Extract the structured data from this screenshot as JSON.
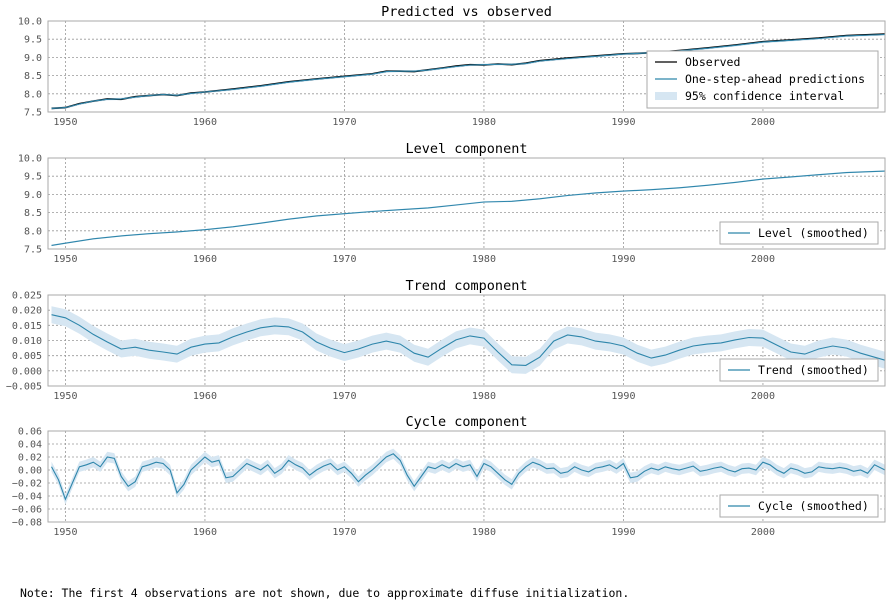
{
  "footnote": "Note: The first 4 observations are not shown, due to approximate diffuse initialization.",
  "chart_data": [
    {
      "type": "line",
      "title": "Predicted vs observed",
      "xlim": [
        1948.75,
        2008.75
      ],
      "ylim": [
        7.5,
        10.0
      ],
      "yticks": [
        "7.5",
        "8.0",
        "8.5",
        "9.0",
        "9.5",
        "10.0"
      ],
      "xticks": [
        "1950",
        "1960",
        "1970",
        "1980",
        "1990",
        "2000"
      ],
      "grid": true,
      "legend": "right",
      "legend_entries": [
        "Observed",
        "One-step-ahead predictions",
        "95% confidence interval"
      ],
      "colors": {
        "observed": "#000000",
        "predicted": "#2e86ab",
        "band": "#d6e6f2"
      },
      "series": [
        {
          "name": "Observed",
          "x": [
            1949,
            1950,
            1951,
            1952,
            1953,
            1954,
            1955,
            1956,
            1957,
            1958,
            1959,
            1960,
            1962,
            1964,
            1966,
            1968,
            1970,
            1972,
            1973,
            1974,
            1975,
            1976,
            1977,
            1978,
            1979,
            1980,
            1981,
            1982,
            1983,
            1984,
            1986,
            1988,
            1990,
            1991,
            1992,
            1994,
            1996,
            1998,
            2000,
            2002,
            2004,
            2006,
            2008.75
          ],
          "values": [
            7.6,
            7.62,
            7.73,
            7.8,
            7.86,
            7.85,
            7.92,
            7.95,
            7.98,
            7.95,
            8.02,
            8.05,
            8.13,
            8.22,
            8.33,
            8.41,
            8.48,
            8.55,
            8.62,
            8.62,
            8.61,
            8.66,
            8.71,
            8.76,
            8.8,
            8.79,
            8.82,
            8.8,
            8.84,
            8.91,
            8.98,
            9.04,
            9.1,
            9.11,
            9.13,
            9.19,
            9.26,
            9.34,
            9.43,
            9.48,
            9.53,
            9.6,
            9.64
          ]
        },
        {
          "name": "One-step-ahead predictions",
          "x": [
            1949,
            1950,
            1951,
            1952,
            1953,
            1954,
            1955,
            1956,
            1957,
            1958,
            1959,
            1960,
            1962,
            1964,
            1966,
            1968,
            1970,
            1972,
            1973,
            1974,
            1975,
            1976,
            1977,
            1978,
            1979,
            1980,
            1981,
            1982,
            1983,
            1984,
            1986,
            1988,
            1990,
            1991,
            1992,
            1994,
            1996,
            1998,
            2000,
            2002,
            2004,
            2006,
            2008.75
          ],
          "values": [
            7.6,
            7.62,
            7.72,
            7.8,
            7.85,
            7.86,
            7.91,
            7.95,
            7.98,
            7.96,
            8.01,
            8.05,
            8.12,
            8.21,
            8.32,
            8.4,
            8.47,
            8.54,
            8.61,
            8.62,
            8.62,
            8.65,
            8.7,
            8.75,
            8.79,
            8.8,
            8.81,
            8.81,
            8.83,
            8.9,
            8.97,
            9.03,
            9.09,
            9.11,
            9.13,
            9.18,
            9.25,
            9.33,
            9.42,
            9.47,
            9.52,
            9.59,
            9.63
          ]
        }
      ],
      "band_halfwidth": 0.03
    },
    {
      "type": "line",
      "title": "Level component",
      "xlim": [
        1948.75,
        2008.75
      ],
      "ylim": [
        7.5,
        10.0
      ],
      "yticks": [
        "7.5",
        "8.0",
        "8.5",
        "9.0",
        "9.5",
        "10.0"
      ],
      "xticks": [
        "1950",
        "1960",
        "1970",
        "1980",
        "1990",
        "2000"
      ],
      "grid": true,
      "legend": "lower right",
      "legend_entries": [
        "Level (smoothed)"
      ],
      "colors": {
        "line": "#2e86ab",
        "band": "#d6e6f2"
      },
      "series": [
        {
          "name": "Level (smoothed)",
          "x": [
            1949,
            1950,
            1952,
            1954,
            1956,
            1958,
            1960,
            1962,
            1964,
            1966,
            1968,
            1970,
            1972,
            1974,
            1976,
            1978,
            1980,
            1982,
            1984,
            1986,
            1988,
            1990,
            1992,
            1994,
            1996,
            1998,
            2000,
            2002,
            2004,
            2006,
            2008.75
          ],
          "values": [
            7.6,
            7.66,
            7.78,
            7.86,
            7.92,
            7.97,
            8.03,
            8.11,
            8.21,
            8.32,
            8.41,
            8.47,
            8.53,
            8.58,
            8.63,
            8.71,
            8.79,
            8.81,
            8.88,
            8.97,
            9.04,
            9.09,
            9.13,
            9.18,
            9.25,
            9.33,
            9.42,
            9.48,
            9.54,
            9.6,
            9.64
          ]
        }
      ],
      "band_halfwidth": 0.02
    },
    {
      "type": "line",
      "title": "Trend component",
      "xlim": [
        1948.75,
        2008.75
      ],
      "ylim": [
        -0.005,
        0.025
      ],
      "yticks": [
        "−0.005",
        "0.000",
        "0.005",
        "0.010",
        "0.015",
        "0.020",
        "0.025"
      ],
      "xticks": [
        "1950",
        "1960",
        "1970",
        "1980",
        "1990",
        "2000"
      ],
      "grid": true,
      "legend": "lower right",
      "legend_entries": [
        "Trend (smoothed)"
      ],
      "colors": {
        "line": "#2e86ab",
        "band": "#d6e6f2"
      },
      "series": [
        {
          "name": "Trend (smoothed)",
          "x": [
            1949,
            1950,
            1951,
            1952,
            1953,
            1954,
            1955,
            1956,
            1957,
            1958,
            1959,
            1960,
            1961,
            1962,
            1963,
            1964,
            1965,
            1966,
            1967,
            1968,
            1969,
            1970,
            1971,
            1972,
            1973,
            1974,
            1975,
            1976,
            1977,
            1978,
            1979,
            1980,
            1981,
            1982,
            1983,
            1984,
            1985,
            1986,
            1987,
            1988,
            1989,
            1990,
            1991,
            1992,
            1993,
            1994,
            1995,
            1996,
            1997,
            1998,
            1999,
            2000,
            2001,
            2002,
            2003,
            2004,
            2005,
            2006,
            2007,
            2008.75
          ],
          "values": [
            0.0185,
            0.0175,
            0.015,
            0.012,
            0.0095,
            0.0072,
            0.0078,
            0.0068,
            0.0062,
            0.0055,
            0.0078,
            0.0088,
            0.0092,
            0.0112,
            0.0128,
            0.0142,
            0.0148,
            0.0145,
            0.0128,
            0.0095,
            0.0075,
            0.006,
            0.0072,
            0.0088,
            0.0098,
            0.0088,
            0.0058,
            0.0045,
            0.0075,
            0.0102,
            0.0115,
            0.0108,
            0.0062,
            0.002,
            0.0018,
            0.0045,
            0.0098,
            0.0118,
            0.0112,
            0.0098,
            0.0092,
            0.0082,
            0.0058,
            0.0042,
            0.0052,
            0.0068,
            0.0082,
            0.0088,
            0.0092,
            0.0102,
            0.011,
            0.0108,
            0.0085,
            0.0062,
            0.0055,
            0.0072,
            0.0082,
            0.0075,
            0.0058,
            0.0035
          ]
        }
      ],
      "band_halfwidth": 0.0028
    },
    {
      "type": "line",
      "title": "Cycle component",
      "xlim": [
        1948.75,
        2008.75
      ],
      "ylim": [
        -0.08,
        0.06
      ],
      "yticks": [
        "−0.08",
        "−0.06",
        "−0.04",
        "−0.02",
        "0.00",
        "0.02",
        "0.04",
        "0.06"
      ],
      "xticks": [
        "1950",
        "1960",
        "1970",
        "1980",
        "1990",
        "2000"
      ],
      "grid": true,
      "legend": "lower right",
      "legend_entries": [
        "Cycle (smoothed)"
      ],
      "colors": {
        "line": "#2e86ab",
        "band": "#d6e6f2"
      },
      "series": [
        {
          "name": "Cycle (smoothed)",
          "x": [
            1949,
            1949.5,
            1950,
            1950.5,
            1951,
            1951.5,
            1952,
            1952.5,
            1953,
            1953.5,
            1954,
            1954.5,
            1955,
            1955.5,
            1956,
            1956.5,
            1957,
            1957.5,
            1958,
            1958.5,
            1959,
            1959.5,
            1960,
            1960.5,
            1961,
            1961.5,
            1962,
            1962.5,
            1963,
            1963.5,
            1964,
            1964.5,
            1965,
            1965.5,
            1966,
            1966.5,
            1967,
            1967.5,
            1968,
            1968.5,
            1969,
            1969.5,
            1970,
            1970.5,
            1971,
            1971.5,
            1972,
            1972.5,
            1973,
            1973.5,
            1974,
            1974.5,
            1975,
            1975.5,
            1976,
            1976.5,
            1977,
            1977.5,
            1978,
            1978.5,
            1979,
            1979.5,
            1980,
            1980.5,
            1981,
            1981.5,
            1982,
            1982.5,
            1983,
            1983.5,
            1984,
            1984.5,
            1985,
            1985.5,
            1986,
            1986.5,
            1987,
            1987.5,
            1988,
            1988.5,
            1989,
            1989.5,
            1990,
            1990.5,
            1991,
            1991.5,
            1992,
            1992.5,
            1993,
            1993.5,
            1994,
            1994.5,
            1995,
            1995.5,
            1996,
            1996.5,
            1997,
            1997.5,
            1998,
            1998.5,
            1999,
            1999.5,
            2000,
            2000.5,
            2001,
            2001.5,
            2002,
            2002.5,
            2003,
            2003.5,
            2004,
            2004.5,
            2005,
            2005.5,
            2006,
            2006.5,
            2007,
            2007.5,
            2008,
            2008.75
          ],
          "values": [
            0.005,
            -0.015,
            -0.045,
            -0.02,
            0.005,
            0.008,
            0.012,
            0.005,
            0.02,
            0.018,
            -0.01,
            -0.025,
            -0.018,
            0.005,
            0.008,
            0.012,
            0.01,
            0.0,
            -0.035,
            -0.022,
            0.0,
            0.01,
            0.02,
            0.012,
            0.015,
            -0.012,
            -0.01,
            0.0,
            0.01,
            0.005,
            0.0,
            0.008,
            -0.005,
            0.002,
            0.015,
            0.008,
            0.003,
            -0.008,
            0.0,
            0.006,
            0.01,
            0.0,
            0.005,
            -0.005,
            -0.018,
            -0.008,
            0.0,
            0.01,
            0.02,
            0.025,
            0.015,
            -0.008,
            -0.025,
            -0.01,
            0.005,
            0.002,
            0.008,
            0.003,
            0.01,
            0.005,
            0.008,
            -0.01,
            0.01,
            0.005,
            -0.005,
            -0.015,
            -0.022,
            -0.005,
            0.005,
            0.012,
            0.008,
            0.002,
            0.003,
            -0.005,
            -0.003,
            0.005,
            0.0,
            -0.003,
            0.003,
            0.005,
            0.008,
            0.002,
            0.01,
            -0.012,
            -0.01,
            -0.002,
            0.003,
            0.0,
            0.005,
            0.002,
            0.0,
            0.003,
            0.006,
            -0.002,
            0.0,
            0.003,
            0.005,
            0.0,
            -0.003,
            0.002,
            0.003,
            0.0,
            0.012,
            0.008,
            0.0,
            -0.005,
            0.003,
            0.0,
            -0.005,
            -0.003,
            0.005,
            0.003,
            0.002,
            0.004,
            0.002,
            -0.002,
            0.0,
            -0.005,
            0.008,
            0.0
          ]
        }
      ],
      "band_halfwidth": 0.008
    }
  ]
}
